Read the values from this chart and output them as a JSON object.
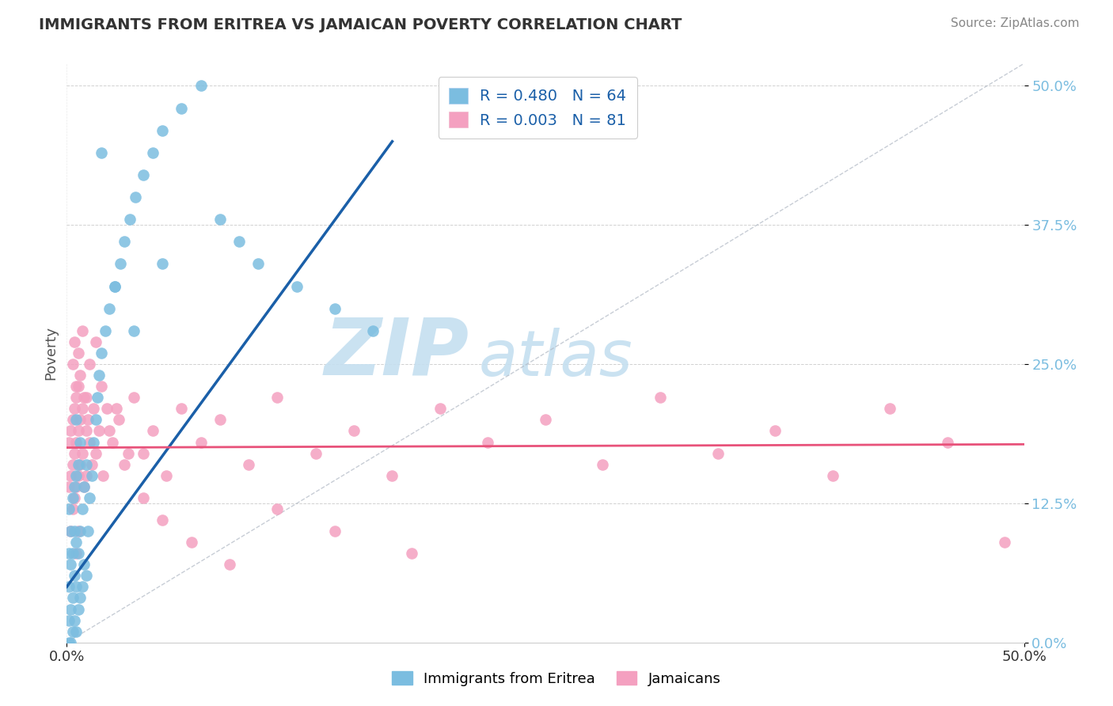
{
  "title": "IMMIGRANTS FROM ERITREA VS JAMAICAN POVERTY CORRELATION CHART",
  "source": "Source: ZipAtlas.com",
  "ylabel": "Poverty",
  "xlim": [
    0.0,
    0.5
  ],
  "ylim": [
    0.0,
    0.52
  ],
  "ytick_labels": [
    "0.0%",
    "12.5%",
    "25.0%",
    "37.5%",
    "50.0%"
  ],
  "ytick_values": [
    0.0,
    0.125,
    0.25,
    0.375,
    0.5
  ],
  "legend_labels": [
    "Immigrants from Eritrea",
    "Jamaicans"
  ],
  "R_eritrea": 0.48,
  "N_eritrea": 64,
  "R_jamaican": 0.003,
  "N_jamaican": 81,
  "color_eritrea": "#7bbde0",
  "color_jamaican": "#f4a0c0",
  "trendline_eritrea_color": "#1a5fa8",
  "trendline_jamaican_color": "#e8527a",
  "watermark_zip": "ZIP",
  "watermark_atlas": "atlas",
  "watermark_color": "#c5dff0",
  "background_color": "#ffffff",
  "eritrea_x": [
    0.001,
    0.001,
    0.001,
    0.001,
    0.001,
    0.002,
    0.002,
    0.002,
    0.002,
    0.003,
    0.003,
    0.003,
    0.003,
    0.004,
    0.004,
    0.004,
    0.004,
    0.005,
    0.005,
    0.005,
    0.005,
    0.005,
    0.006,
    0.006,
    0.006,
    0.007,
    0.007,
    0.007,
    0.008,
    0.008,
    0.009,
    0.009,
    0.01,
    0.01,
    0.011,
    0.012,
    0.013,
    0.014,
    0.015,
    0.016,
    0.017,
    0.018,
    0.02,
    0.022,
    0.025,
    0.028,
    0.03,
    0.033,
    0.036,
    0.04,
    0.045,
    0.05,
    0.06,
    0.07,
    0.08,
    0.09,
    0.1,
    0.12,
    0.14,
    0.16,
    0.018,
    0.025,
    0.035,
    0.05
  ],
  "eritrea_y": [
    0.0,
    0.02,
    0.05,
    0.08,
    0.12,
    0.0,
    0.03,
    0.07,
    0.1,
    0.01,
    0.04,
    0.08,
    0.13,
    0.02,
    0.06,
    0.1,
    0.14,
    0.01,
    0.05,
    0.09,
    0.15,
    0.2,
    0.03,
    0.08,
    0.16,
    0.04,
    0.1,
    0.18,
    0.05,
    0.12,
    0.07,
    0.14,
    0.06,
    0.16,
    0.1,
    0.13,
    0.15,
    0.18,
    0.2,
    0.22,
    0.24,
    0.26,
    0.28,
    0.3,
    0.32,
    0.34,
    0.36,
    0.38,
    0.4,
    0.42,
    0.44,
    0.46,
    0.48,
    0.5,
    0.38,
    0.36,
    0.34,
    0.32,
    0.3,
    0.28,
    0.44,
    0.32,
    0.28,
    0.34
  ],
  "jamaican_x": [
    0.001,
    0.001,
    0.002,
    0.002,
    0.002,
    0.003,
    0.003,
    0.003,
    0.004,
    0.004,
    0.004,
    0.005,
    0.005,
    0.005,
    0.005,
    0.006,
    0.006,
    0.006,
    0.006,
    0.007,
    0.007,
    0.008,
    0.008,
    0.009,
    0.009,
    0.01,
    0.01,
    0.011,
    0.012,
    0.013,
    0.014,
    0.015,
    0.017,
    0.019,
    0.021,
    0.024,
    0.027,
    0.03,
    0.035,
    0.04,
    0.045,
    0.052,
    0.06,
    0.07,
    0.08,
    0.095,
    0.11,
    0.13,
    0.15,
    0.17,
    0.195,
    0.22,
    0.25,
    0.28,
    0.31,
    0.34,
    0.37,
    0.4,
    0.43,
    0.46,
    0.003,
    0.004,
    0.005,
    0.006,
    0.007,
    0.008,
    0.01,
    0.012,
    0.015,
    0.018,
    0.022,
    0.026,
    0.032,
    0.04,
    0.05,
    0.065,
    0.085,
    0.11,
    0.14,
    0.18,
    0.49
  ],
  "jamaican_y": [
    0.18,
    0.14,
    0.19,
    0.15,
    0.1,
    0.2,
    0.16,
    0.12,
    0.21,
    0.17,
    0.13,
    0.22,
    0.18,
    0.14,
    0.08,
    0.23,
    0.19,
    0.15,
    0.1,
    0.2,
    0.16,
    0.21,
    0.17,
    0.22,
    0.14,
    0.19,
    0.15,
    0.2,
    0.18,
    0.16,
    0.21,
    0.17,
    0.19,
    0.15,
    0.21,
    0.18,
    0.2,
    0.16,
    0.22,
    0.17,
    0.19,
    0.15,
    0.21,
    0.18,
    0.2,
    0.16,
    0.22,
    0.17,
    0.19,
    0.15,
    0.21,
    0.18,
    0.2,
    0.16,
    0.22,
    0.17,
    0.19,
    0.15,
    0.21,
    0.18,
    0.25,
    0.27,
    0.23,
    0.26,
    0.24,
    0.28,
    0.22,
    0.25,
    0.27,
    0.23,
    0.19,
    0.21,
    0.17,
    0.13,
    0.11,
    0.09,
    0.07,
    0.12,
    0.1,
    0.08,
    0.09
  ]
}
